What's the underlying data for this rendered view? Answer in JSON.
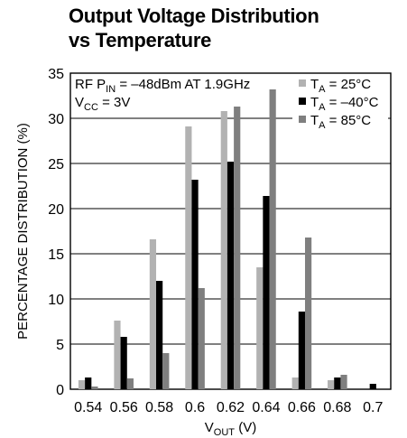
{
  "chart_data": {
    "type": "bar",
    "title_lines": [
      "Output Voltage Distribution",
      "vs Temperature"
    ],
    "ylabel": "PERCENTAGE DISTRIBUTION (%)",
    "xlabel": {
      "main": "V",
      "sub": "OUT",
      "tail": " (V)"
    },
    "ylim": [
      0,
      35
    ],
    "yticks": [
      "0",
      "5",
      "10",
      "15",
      "20",
      "25",
      "30",
      "35"
    ],
    "categories": [
      "0.54",
      "0.56",
      "0.58",
      "0.6",
      "0.62",
      "0.64",
      "0.66",
      "0.68",
      "0.7"
    ],
    "grid": true,
    "legend_position": "top-right",
    "annotation": [
      {
        "parts": [
          {
            "t": "RF P"
          },
          {
            "t": "IN",
            "sub": true
          },
          {
            "t": " = –48dBm AT 1.9GHz"
          }
        ]
      },
      {
        "parts": [
          {
            "t": "V"
          },
          {
            "t": "CC",
            "sub": true
          },
          {
            "t": " = 3V"
          }
        ]
      }
    ],
    "series": [
      {
        "name": "25°C",
        "color": "#b2b2b2",
        "values": [
          1.0,
          7.6,
          16.6,
          29.1,
          30.8,
          13.5,
          1.3,
          1.0,
          0
        ]
      },
      {
        "name": "–40°C",
        "color": "#000000",
        "values": [
          1.3,
          5.8,
          12.0,
          23.2,
          25.2,
          21.4,
          8.6,
          1.3,
          0.6
        ]
      },
      {
        "name": "85°C",
        "color": "#7f7f7f",
        "values": [
          0.3,
          1.2,
          4.0,
          11.2,
          31.3,
          33.2,
          16.8,
          1.6,
          0
        ]
      }
    ],
    "legend_prefix": {
      "main": "T",
      "sub": "A",
      "eq": " = "
    }
  }
}
